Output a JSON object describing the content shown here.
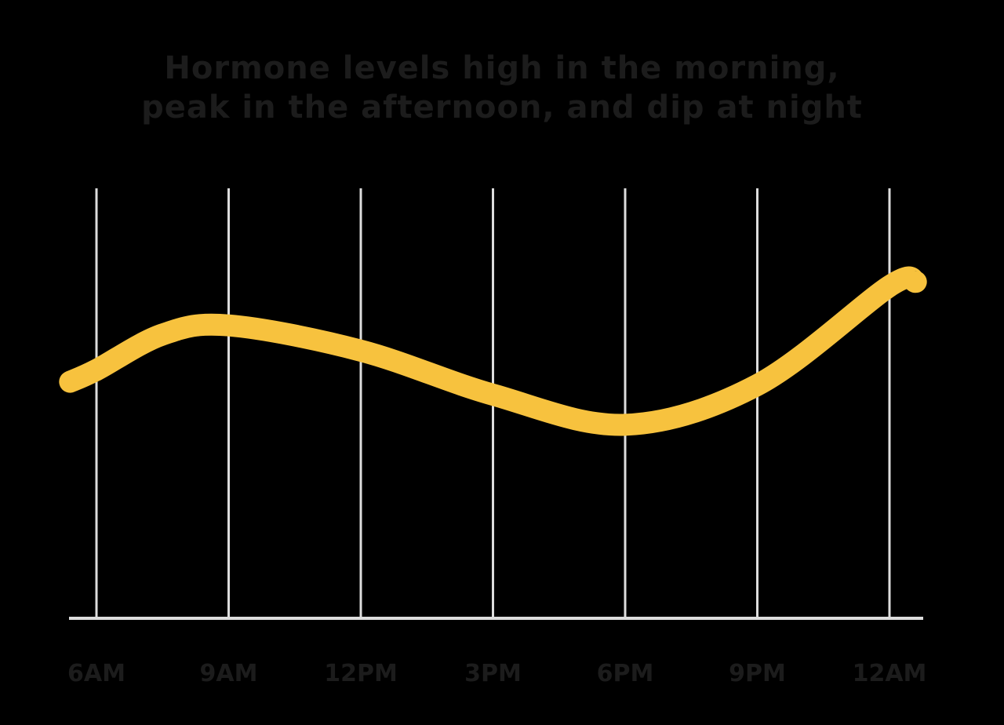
{
  "chart_data": {
    "type": "line",
    "title_lines": [
      "Hormone levels high in the morning,",
      "peak in the afternoon, and dip at night"
    ],
    "categories": [
      "6AM",
      "9AM",
      "12PM",
      "3PM",
      "6PM",
      "9PM",
      "12AM"
    ],
    "x": [
      -0.2,
      0,
      0.5,
      1,
      2,
      3,
      4,
      5,
      6,
      6.2
    ],
    "y": [
      4.4,
      4.62,
      5.28,
      5.45,
      4.98,
      4.16,
      3.6,
      4.34,
      6.18,
      6.26
    ],
    "ylim": [
      0,
      8
    ],
    "xlabel": "",
    "ylabel": "",
    "grid": true,
    "colors": {
      "line": "#F7C23E",
      "grid": "#DDDDDD",
      "axis": "#DDDDDD",
      "text": "#1C1C1C",
      "background": "#000000"
    }
  }
}
